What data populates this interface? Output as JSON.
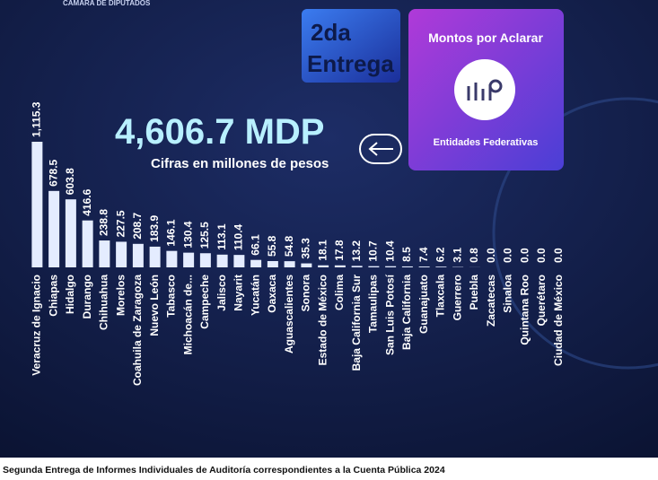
{
  "header": {
    "institution": "CÁMARA DE DIPUTADOS",
    "badge_line1": "2da",
    "badge_line2": "Entrega",
    "panel_title": "Montos por Aclarar",
    "panel_subtitle": "Entidades Federativas"
  },
  "chart_data": {
    "type": "bar",
    "title": "4,606.7 MDP",
    "subtitle": "Cifras en millones de pesos",
    "color": "#e4ecff",
    "categories": [
      "Veracruz de Ignacio",
      "Chiapas",
      "Hidalgo",
      "Durango",
      "Chihuahua",
      "Morelos",
      "Coahuila de Zaragoza",
      "Nuevo León",
      "Tabasco",
      "Michoacán de...",
      "Campeche",
      "Jalisco",
      "Nayarit",
      "Yucatán",
      "Oaxaca",
      "Aguascalientes",
      "Sonora",
      "Estado de México",
      "Colima",
      "Baja California Sur",
      "Tamaulipas",
      "San Luis Potosí",
      "Baja California",
      "Guanajuato",
      "Tlaxcala",
      "Guerrero",
      "Puebla",
      "Zacatecas",
      "Sinaloa",
      "Quintana Roo",
      "Querétaro",
      "Ciudad de México"
    ],
    "values": [
      1115.3,
      678.5,
      603.8,
      416.6,
      238.8,
      227.5,
      208.7,
      183.9,
      146.1,
      130.4,
      125.5,
      113.1,
      110.4,
      66.1,
      55.8,
      54.8,
      35.3,
      18.1,
      17.8,
      13.2,
      10.7,
      10.4,
      8.5,
      7.4,
      6.2,
      3.1,
      0.8,
      0,
      0,
      0,
      0,
      0
    ],
    "value_labels": [
      "1,115.3",
      "678.5",
      "603.8",
      "416.6",
      "238.8",
      "227.5",
      "208.7",
      "183.9",
      "146.1",
      "130.4",
      "125.5",
      "113.1",
      "110.4",
      "66.1",
      "55.8",
      "54.8",
      "35.3",
      "18.1",
      "17.8",
      "13.2",
      "10.7",
      "10.4",
      "8.5",
      "7.4",
      "6.2",
      "3.1",
      "0.8",
      "0.0",
      "0.0",
      "0.0",
      "0.0",
      "0.0"
    ]
  },
  "caption": "Segunda Entrega de Informes Individuales de Auditoría correspondientes a la Cuenta Pública 2024"
}
